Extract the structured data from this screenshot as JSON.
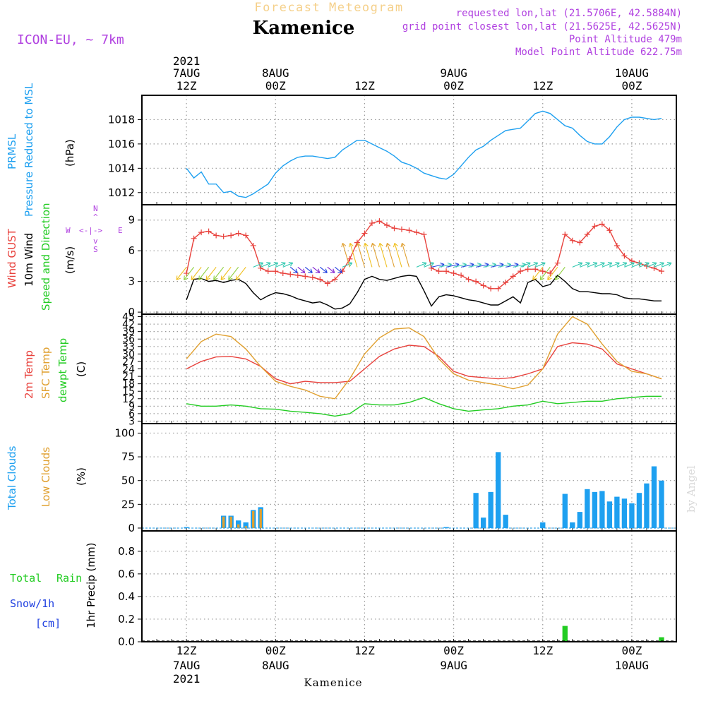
{
  "header": {
    "top_title": "Forecast Meteogram",
    "model": "ICON-EU, ~ 7km",
    "location": "Kamenice",
    "requested": "requested lon,lat (21.5706E, 42.5884N)",
    "gridpoint": "grid point closest lon,lat (21.5625E, 42.5625N)",
    "point_alt": "Point Altitude 479m",
    "model_alt": "Model Point Altitude 622.75m",
    "bottom_location": "Kamenice",
    "credit": "by Angel"
  },
  "time_axis": {
    "year": "2021",
    "top_hour_labels": [
      "12Z",
      "00Z",
      "12Z",
      "00Z",
      "12Z",
      "00Z"
    ],
    "top_day_labels": [
      "7AUG",
      "8AUG",
      "",
      "9AUG",
      "",
      "10AUG"
    ],
    "bottom_hour_labels": [
      "12Z",
      "00Z",
      "12Z",
      "00Z",
      "12Z",
      "00Z"
    ],
    "bottom_day_labels": [
      "7AUG",
      "8AUG",
      "",
      "9AUG",
      "",
      "10AUG"
    ],
    "hours_from_start": [
      0,
      12,
      24,
      36,
      48,
      60
    ]
  },
  "panels": {
    "pressure": {
      "label1": "PRMSL",
      "label2": "Pressure Reduced to MSL",
      "unit": "(hPa)",
      "color": "#1ea0f0"
    },
    "wind": {
      "label_gust": "Wind GUST",
      "label_wind": "10m Wind",
      "label_dir": "Speed and Direction",
      "unit": "(m/s)",
      "compass": {
        "n": "N",
        "s": "S",
        "e": "E",
        "w": "W",
        "arrow_h": "<-|->",
        "arrow_v1": "^",
        "arrow_v2": "v"
      }
    },
    "temp": {
      "label1": "2m Temp",
      "label2": "SFC Temp",
      "label3": "dewpt Temp",
      "unit": "(C)"
    },
    "clouds": {
      "label1": "Total Clouds",
      "label2": "Low Clouds",
      "unit": "(%)"
    },
    "precip": {
      "label_total": "Total",
      "label_rain": "Rain",
      "label_snow": "Snow/1h",
      "label_cm": "[cm]",
      "ylabel": "1hr Precip (mm)"
    }
  },
  "chart_data": [
    {
      "type": "line",
      "name": "pressure",
      "ylabel": "(hPa)",
      "ylim": [
        1011,
        1020
      ],
      "yticks": [
        1012,
        1014,
        1016,
        1018
      ],
      "series": [
        {
          "name": "PRMSL",
          "color": "#1ea0f0",
          "x": [
            0,
            1,
            2,
            3,
            4,
            5,
            6,
            7,
            8,
            9,
            10,
            11,
            12,
            13,
            14,
            15,
            16,
            17,
            18,
            19,
            20,
            21,
            22,
            23,
            24,
            25,
            26,
            27,
            28,
            29,
            30,
            31,
            32,
            33,
            34,
            35,
            36,
            37,
            38,
            39,
            40,
            41,
            42,
            43,
            44,
            45,
            46,
            47,
            48,
            49,
            50,
            51,
            52,
            53,
            54,
            55,
            56,
            57,
            58,
            59,
            60,
            61,
            62,
            63,
            64
          ],
          "y": [
            1014.0,
            1013.2,
            1013.7,
            1012.7,
            1012.7,
            1012.0,
            1012.1,
            1011.7,
            1011.6,
            1011.9,
            1012.3,
            1012.7,
            1013.6,
            1014.2,
            1014.6,
            1014.9,
            1015.0,
            1015.0,
            1014.9,
            1014.8,
            1014.9,
            1015.5,
            1015.9,
            1016.3,
            1016.3,
            1016.0,
            1015.7,
            1015.4,
            1015.0,
            1014.5,
            1014.3,
            1014.0,
            1013.6,
            1013.4,
            1013.2,
            1013.1,
            1013.5,
            1014.2,
            1014.9,
            1015.5,
            1015.8,
            1016.3,
            1016.7,
            1017.1,
            1017.2,
            1017.3,
            1017.9,
            1018.5,
            1018.7,
            1018.5,
            1018.0,
            1017.5,
            1017.3,
            1016.7,
            1016.2,
            1016.0,
            1016.0,
            1016.6,
            1017.4,
            1018.0,
            1018.2,
            1018.2,
            1018.1,
            1018.0,
            1018.1
          ]
        }
      ]
    },
    {
      "type": "line",
      "name": "wind",
      "ylabel": "(m/s)",
      "ylim": [
        -0.2,
        10.5
      ],
      "yticks": [
        0,
        3,
        6,
        9
      ],
      "series": [
        {
          "name": "Wind GUST",
          "color": "#e8413c",
          "x": [
            0,
            1,
            2,
            3,
            4,
            5,
            6,
            7,
            8,
            9,
            10,
            11,
            12,
            13,
            14,
            15,
            16,
            17,
            18,
            19,
            20,
            21,
            22,
            23,
            24,
            25,
            26,
            27,
            28,
            29,
            30,
            31,
            32,
            33,
            34,
            35,
            36,
            37,
            38,
            39,
            40,
            41,
            42,
            43,
            44,
            45,
            46,
            47,
            48,
            49,
            50,
            51,
            52,
            53,
            54,
            55,
            56,
            57,
            58,
            59,
            60,
            61,
            62,
            63,
            64
          ],
          "y": [
            3.8,
            7.2,
            7.8,
            7.9,
            7.5,
            7.4,
            7.5,
            7.7,
            7.5,
            6.5,
            4.3,
            4.0,
            4.0,
            3.8,
            3.7,
            3.6,
            3.5,
            3.4,
            3.2,
            2.8,
            3.2,
            4.0,
            5.2,
            6.8,
            7.7,
            8.7,
            8.9,
            8.5,
            8.2,
            8.1,
            8.0,
            7.8,
            7.6,
            4.3,
            4.0,
            4.0,
            3.8,
            3.6,
            3.2,
            3.0,
            2.6,
            2.3,
            2.3,
            2.9,
            3.5,
            4.0,
            4.2,
            4.2,
            4.0,
            3.8,
            4.8,
            7.6,
            7.0,
            6.8,
            7.6,
            8.4,
            8.6,
            8.0,
            6.5,
            5.5,
            5.0,
            4.8,
            4.5,
            4.3,
            4.0
          ]
        },
        {
          "name": "10m Wind",
          "color": "#000000",
          "x": [
            0,
            1,
            2,
            3,
            4,
            5,
            6,
            7,
            8,
            9,
            10,
            11,
            12,
            13,
            14,
            15,
            16,
            17,
            18,
            19,
            20,
            21,
            22,
            23,
            24,
            25,
            26,
            27,
            28,
            29,
            30,
            31,
            32,
            33,
            34,
            35,
            36,
            37,
            38,
            39,
            40,
            41,
            42,
            43,
            44,
            45,
            46,
            47,
            48,
            49,
            50,
            51,
            52,
            53,
            54,
            55,
            56,
            57,
            58,
            59,
            60,
            61,
            62,
            63,
            64
          ],
          "y": [
            1.2,
            3.2,
            3.3,
            3.0,
            3.1,
            2.9,
            3.1,
            3.2,
            2.8,
            1.9,
            1.2,
            1.6,
            1.9,
            1.8,
            1.6,
            1.3,
            1.1,
            0.9,
            1.0,
            0.7,
            0.3,
            0.4,
            0.8,
            1.9,
            3.2,
            3.5,
            3.2,
            3.1,
            3.3,
            3.5,
            3.6,
            3.5,
            2.1,
            0.6,
            1.5,
            1.7,
            1.6,
            1.4,
            1.2,
            1.1,
            0.9,
            0.7,
            0.7,
            1.1,
            1.5,
            0.9,
            2.9,
            3.2,
            2.5,
            2.7,
            3.6,
            3.0,
            2.3,
            2.0,
            2.0,
            1.9,
            1.8,
            1.8,
            1.7,
            1.4,
            1.3,
            1.3,
            1.2,
            1.1,
            1.1
          ]
        }
      ]
    },
    {
      "type": "line",
      "name": "temperature",
      "ylabel": "(C)",
      "ylim": [
        2,
        46
      ],
      "yticks": [
        3,
        6,
        9,
        12,
        15,
        18,
        21,
        24,
        27,
        30,
        33,
        36,
        39,
        42,
        45
      ],
      "series": [
        {
          "name": "2m Temp",
          "color": "#e8413c",
          "x": [
            0,
            2,
            4,
            6,
            8,
            10,
            12,
            14,
            16,
            18,
            20,
            22,
            24,
            26,
            28,
            30,
            32,
            34,
            36,
            38,
            40,
            42,
            44,
            46,
            48,
            50,
            52,
            54,
            56,
            58,
            60,
            62,
            64
          ],
          "y": [
            24,
            27,
            28.8,
            29,
            28,
            25,
            20,
            18,
            19,
            18.5,
            18.5,
            19,
            24,
            29,
            32,
            33.5,
            33,
            29,
            23,
            21,
            20.5,
            20,
            20.5,
            22,
            24,
            33,
            34.5,
            34,
            32,
            26,
            24,
            22,
            20
          ]
        },
        {
          "name": "SFC Temp",
          "color": "#e0a030",
          "x": [
            0,
            2,
            4,
            6,
            8,
            10,
            12,
            14,
            16,
            18,
            20,
            22,
            24,
            26,
            28,
            30,
            32,
            34,
            36,
            38,
            40,
            42,
            44,
            46,
            48,
            50,
            52,
            54,
            56,
            58,
            60,
            62,
            64
          ],
          "y": [
            28,
            35,
            38,
            37,
            32,
            25,
            19,
            17,
            15.5,
            13,
            12,
            20,
            30,
            36.5,
            40,
            40.5,
            37,
            28,
            22,
            19.5,
            18.5,
            17.5,
            16,
            17.5,
            24,
            38,
            45,
            42,
            34,
            27,
            23,
            22,
            20
          ]
        },
        {
          "name": "dewpt Temp",
          "color": "#22cc22",
          "x": [
            0,
            2,
            4,
            6,
            8,
            10,
            12,
            14,
            16,
            18,
            20,
            22,
            24,
            26,
            28,
            30,
            32,
            34,
            36,
            38,
            40,
            42,
            44,
            46,
            48,
            50,
            52,
            54,
            56,
            58,
            60,
            62,
            64
          ],
          "y": [
            10,
            9,
            9,
            9.5,
            9,
            8,
            7.8,
            7,
            6.5,
            6,
            5,
            6,
            10,
            9.5,
            9.5,
            10.5,
            12.5,
            10,
            8,
            7,
            7.5,
            8,
            9,
            9.5,
            11,
            10,
            10.5,
            11,
            11,
            12,
            12.5,
            13,
            13
          ]
        }
      ]
    },
    {
      "type": "bar",
      "name": "clouds",
      "ylabel": "(%)",
      "ylim": [
        -3,
        110
      ],
      "yticks": [
        0,
        25,
        50,
        75,
        100
      ],
      "series": [
        {
          "name": "Total Clouds",
          "color": "#1ea0f0",
          "x": [
            0,
            1,
            2,
            3,
            4,
            5,
            6,
            7,
            8,
            9,
            10,
            11,
            12,
            13,
            14,
            15,
            16,
            17,
            18,
            19,
            20,
            21,
            22,
            23,
            24,
            25,
            26,
            27,
            28,
            29,
            30,
            31,
            32,
            33,
            34,
            35,
            36,
            37,
            38,
            39,
            40,
            41,
            42,
            43,
            44,
            45,
            46,
            47,
            48,
            49,
            50,
            51,
            52,
            53,
            54,
            55,
            56,
            57,
            58,
            59,
            60,
            61,
            62,
            63,
            64
          ],
          "y": [
            1,
            0,
            0,
            0,
            0,
            13,
            13,
            8,
            6,
            19,
            22,
            0,
            0,
            0,
            0,
            0,
            0,
            0,
            0,
            0,
            0,
            0,
            0,
            0,
            0,
            0,
            0,
            0,
            0,
            0,
            0,
            0,
            0,
            0,
            0,
            1,
            0,
            0,
            0,
            37,
            11,
            38,
            80,
            14,
            0,
            0,
            0,
            0,
            6,
            0,
            0,
            36,
            6,
            17,
            41,
            38,
            39,
            28,
            33,
            31,
            26,
            37,
            47,
            65,
            50
          ]
        },
        {
          "name": "Low Clouds",
          "color": "#e0a030",
          "x": [
            0,
            1,
            2,
            3,
            4,
            5,
            6,
            7,
            8,
            9,
            10,
            11,
            12,
            13,
            14,
            15,
            16,
            17,
            18,
            19,
            20,
            21,
            22,
            23,
            24,
            25,
            26,
            27,
            28,
            29,
            30,
            31,
            32,
            33,
            34,
            35,
            36,
            37,
            38,
            39,
            40,
            41,
            42,
            43,
            44,
            45,
            46,
            47,
            48,
            49,
            50,
            51,
            52,
            53,
            54,
            55,
            56,
            57,
            58,
            59,
            60,
            61,
            62,
            63,
            64
          ],
          "y": [
            0,
            0,
            0,
            0,
            0,
            12,
            12,
            4,
            2,
            18,
            20,
            0,
            0,
            0,
            0,
            0,
            0,
            0,
            0,
            0,
            0,
            0,
            0,
            0,
            0,
            0,
            0,
            0,
            0,
            0,
            0,
            0,
            0,
            0,
            0,
            0,
            0,
            0,
            0,
            0,
            0,
            0,
            0,
            0,
            0,
            0,
            0,
            0,
            0,
            0,
            0,
            0,
            0,
            0,
            0,
            0,
            0,
            0,
            0,
            0,
            0,
            0,
            0,
            0,
            0
          ]
        }
      ]
    },
    {
      "type": "bar",
      "name": "precipitation",
      "ylabel": "1hr Precip (mm)",
      "ylim": [
        0,
        0.98
      ],
      "yticks": [
        0,
        0.2,
        0.4,
        0.6,
        0.8
      ],
      "series": [
        {
          "name": "Total",
          "color": "#22cc22",
          "x": [
            51,
            64
          ],
          "y": [
            0.14,
            0.04
          ]
        }
      ]
    }
  ],
  "wind_arrows": {
    "colors": [
      "#f0c020",
      "#90d040",
      "#30c8b0",
      "#2040e0",
      "#8020d0",
      "#e0a030"
    ],
    "hours": [
      0,
      1,
      2,
      3,
      4,
      5,
      6,
      7,
      8,
      9,
      10,
      11,
      12,
      13,
      14,
      15,
      16,
      17,
      18,
      19,
      20,
      21,
      22,
      23,
      24,
      25,
      26,
      27,
      28,
      29,
      30,
      31,
      32,
      33,
      34,
      35,
      36,
      37,
      38,
      39,
      40,
      41,
      42,
      43,
      44,
      45,
      46,
      47,
      48,
      49,
      50,
      51,
      52,
      53,
      54,
      55,
      56,
      57,
      58,
      59,
      60,
      61,
      62,
      63,
      64
    ]
  }
}
